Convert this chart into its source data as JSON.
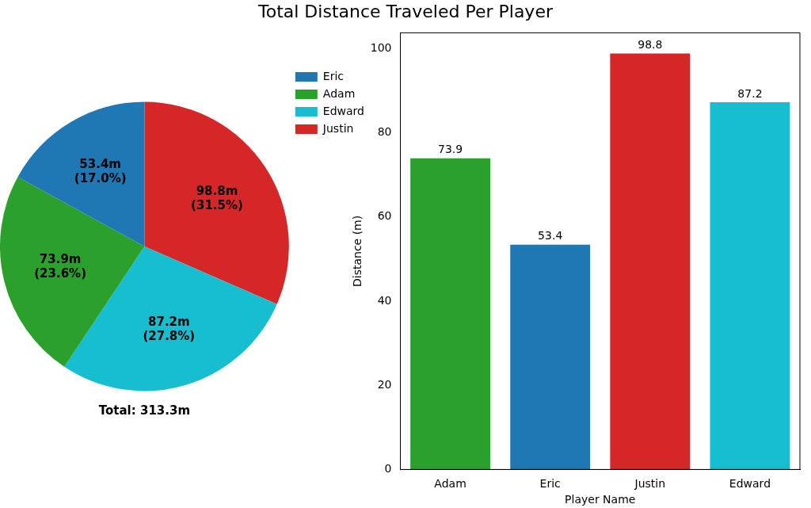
{
  "chart_data": [
    {
      "type": "pie",
      "categories": [
        "Eric",
        "Adam",
        "Edward",
        "Justin"
      ],
      "values": [
        17.0,
        23.6,
        27.8,
        31.5
      ],
      "colors": [
        "#1f77b4",
        "#2ca02c",
        "#17becf",
        "#d62728"
      ],
      "value_labels": [
        "53.4m\n(17.0%)",
        "73.9m\n(23.6%)",
        "87.2m\n(27.8%)",
        "98.8m\n(31.5%)"
      ],
      "annotations": [
        "Total: 313.3m"
      ],
      "legend": "top right"
    },
    {
      "type": "bar",
      "title": "Total Distance Traveled Per Player",
      "categories": [
        "Adam",
        "Eric",
        "Justin",
        "Edward"
      ],
      "values": [
        73.9,
        53.4,
        98.8,
        87.2
      ],
      "colors": [
        "#2ca02c",
        "#1f77b4",
        "#d62728",
        "#17becf"
      ],
      "xlabel": "Player Name",
      "ylabel": "Distance (m)",
      "ylim": [
        0,
        103.7
      ],
      "yticks": [
        0,
        20,
        40,
        60,
        80,
        100
      ],
      "data_labels": true
    }
  ]
}
